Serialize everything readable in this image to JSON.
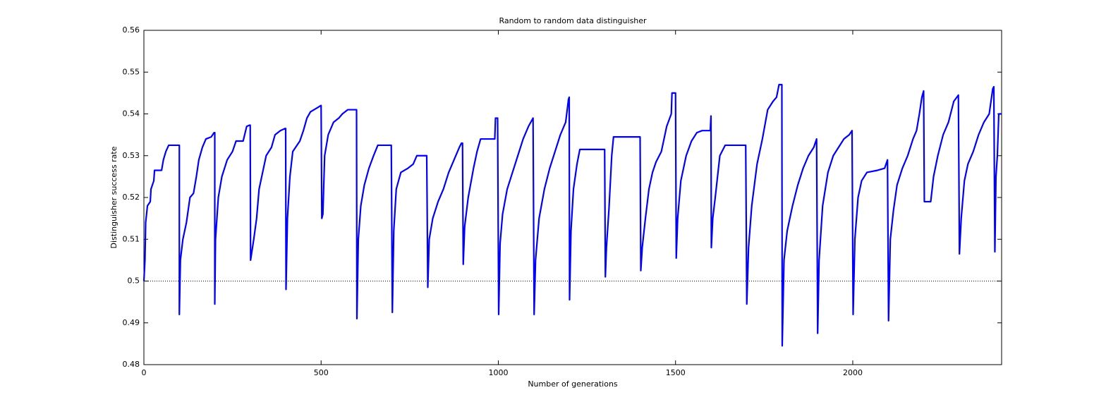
{
  "chart_data": {
    "type": "line",
    "title": "Random to random data distinguisher",
    "x_label": "Number of generations",
    "y_label": "Distinguisher success rate",
    "xlim": [
      0,
      2420
    ],
    "ylim": [
      0.48,
      0.56
    ],
    "xticks": [
      0,
      500,
      1000,
      1500,
      2000
    ],
    "yticks": [
      0.48,
      0.49,
      0.5,
      0.51,
      0.52,
      0.53,
      0.54,
      0.55,
      0.56
    ],
    "reference_line": 0.5,
    "series": [
      {
        "color": "#0000ff",
        "x": [
          0,
          3,
          5,
          10,
          18,
          20,
          28,
          30,
          50,
          55,
          62,
          70,
          100,
          100,
          103,
          110,
          120,
          130,
          140,
          148,
          155,
          165,
          175,
          190,
          198,
          200,
          200,
          202,
          210,
          220,
          235,
          250,
          260,
          280,
          290,
          298,
          300,
          301,
          310,
          318,
          325,
          335,
          345,
          360,
          370,
          385,
          398,
          400,
          401,
          405,
          412,
          420,
          440,
          450,
          460,
          470,
          490,
          499,
          500,
          502,
          505,
          510,
          520,
          535,
          550,
          560,
          575,
          598,
          600,
          601,
          605,
          612,
          622,
          635,
          648,
          660,
          698,
          701,
          705,
          712,
          725,
          745,
          760,
          770,
          798,
          801,
          805,
          815,
          830,
          845,
          860,
          875,
          890,
          896,
          899,
          901,
          905,
          915,
          930,
          940,
          950,
          990,
          992,
          998,
          1001,
          1005,
          1012,
          1025,
          1040,
          1055,
          1070,
          1085,
          1098,
          1101,
          1105,
          1115,
          1130,
          1145,
          1160,
          1175,
          1190,
          1198,
          1200,
          1201,
          1205,
          1212,
          1222,
          1230,
          1300,
          1302,
          1305,
          1312,
          1320,
          1325,
          1400,
          1402,
          1406,
          1415,
          1425,
          1435,
          1445,
          1460,
          1475,
          1488,
          1490,
          1500,
          1502,
          1506,
          1515,
          1530,
          1545,
          1560,
          1575,
          1598,
          1600,
          1601,
          1605,
          1612,
          1625,
          1640,
          1698,
          1701,
          1706,
          1715,
          1730,
          1745,
          1760,
          1775,
          1785,
          1792,
          1800,
          1801,
          1806,
          1815,
          1830,
          1845,
          1860,
          1875,
          1890,
          1898,
          1901,
          1905,
          1915,
          1930,
          1945,
          1960,
          1975,
          1990,
          1998,
          2001,
          2006,
          2015,
          2025,
          2040,
          2070,
          2090,
          2098,
          2101,
          2106,
          2115,
          2125,
          2140,
          2155,
          2170,
          2180,
          2188,
          2195,
          2200,
          2202,
          2220,
          2228,
          2240,
          2255,
          2270,
          2285,
          2298,
          2301,
          2306,
          2315,
          2325,
          2340,
          2355,
          2370,
          2385,
          2395,
          2398,
          2401,
          2404,
          2408,
          2412,
          2420
        ],
        "values": [
          0.5,
          0.505,
          0.514,
          0.518,
          0.519,
          0.522,
          0.524,
          0.5265,
          0.5265,
          0.529,
          0.531,
          0.5325,
          0.5325,
          0.492,
          0.505,
          0.51,
          0.514,
          0.52,
          0.521,
          0.525,
          0.529,
          0.532,
          0.534,
          0.5345,
          0.5355,
          0.5355,
          0.4945,
          0.51,
          0.52,
          0.525,
          0.529,
          0.531,
          0.5335,
          0.5335,
          0.537,
          0.5373,
          0.5373,
          0.505,
          0.51,
          0.515,
          0.522,
          0.526,
          0.53,
          0.532,
          0.535,
          0.536,
          0.5365,
          0.5365,
          0.498,
          0.515,
          0.525,
          0.531,
          0.5335,
          0.536,
          0.539,
          0.5405,
          0.5415,
          0.542,
          0.542,
          0.515,
          0.516,
          0.53,
          0.535,
          0.538,
          0.539,
          0.54,
          0.541,
          0.541,
          0.541,
          0.491,
          0.51,
          0.518,
          0.523,
          0.527,
          0.53,
          0.5325,
          0.5325,
          0.4925,
          0.512,
          0.522,
          0.526,
          0.527,
          0.528,
          0.53,
          0.53,
          0.4985,
          0.51,
          0.515,
          0.519,
          0.522,
          0.526,
          0.529,
          0.532,
          0.533,
          0.533,
          0.504,
          0.513,
          0.52,
          0.527,
          0.531,
          0.534,
          0.534,
          0.539,
          0.539,
          0.492,
          0.509,
          0.516,
          0.522,
          0.526,
          0.53,
          0.534,
          0.537,
          0.539,
          0.492,
          0.505,
          0.515,
          0.522,
          0.527,
          0.531,
          0.535,
          0.538,
          0.5435,
          0.544,
          0.4955,
          0.512,
          0.522,
          0.528,
          0.5315,
          0.5315,
          0.501,
          0.508,
          0.517,
          0.53,
          0.5345,
          0.5345,
          0.5025,
          0.508,
          0.515,
          0.522,
          0.526,
          0.5285,
          0.531,
          0.537,
          0.54,
          0.545,
          0.545,
          0.5055,
          0.515,
          0.524,
          0.53,
          0.5335,
          0.5355,
          0.536,
          0.536,
          0.5395,
          0.508,
          0.515,
          0.52,
          0.53,
          0.5325,
          0.5325,
          0.4945,
          0.508,
          0.518,
          0.528,
          0.534,
          0.541,
          0.543,
          0.544,
          0.547,
          0.547,
          0.4845,
          0.505,
          0.512,
          0.518,
          0.523,
          0.527,
          0.53,
          0.532,
          0.534,
          0.4875,
          0.505,
          0.518,
          0.526,
          0.53,
          0.532,
          0.534,
          0.535,
          0.536,
          0.492,
          0.51,
          0.52,
          0.524,
          0.526,
          0.5265,
          0.527,
          0.529,
          0.4905,
          0.51,
          0.517,
          0.523,
          0.527,
          0.53,
          0.534,
          0.536,
          0.54,
          0.544,
          0.5455,
          0.519,
          0.519,
          0.525,
          0.53,
          0.535,
          0.538,
          0.543,
          0.5445,
          0.5065,
          0.515,
          0.524,
          0.528,
          0.531,
          0.535,
          0.538,
          0.54,
          0.546,
          0.5465,
          0.507,
          0.525,
          0.53,
          0.54,
          0.54
        ]
      }
    ]
  }
}
